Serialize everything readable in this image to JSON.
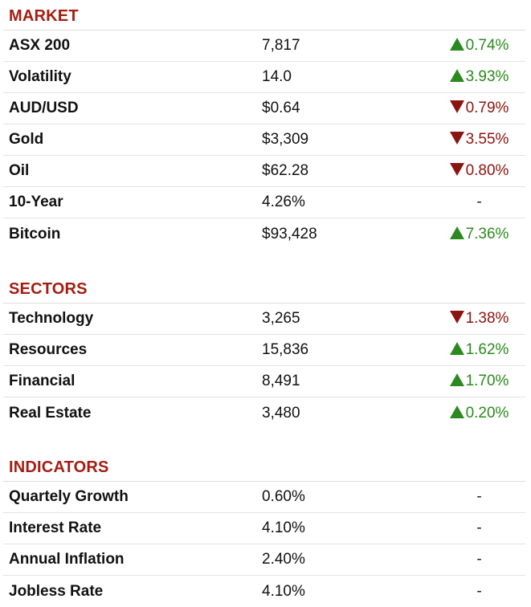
{
  "colors": {
    "section_title": "#a51d12",
    "up": "#2b8a1e",
    "down": "#8c1410",
    "divider": "#e3e3e3"
  },
  "market": {
    "title": "MARKET",
    "rows": [
      {
        "name": "ASX 200",
        "value": "7,817",
        "direction": "up",
        "change": "0.74%"
      },
      {
        "name": "Volatility",
        "value": "14.0",
        "direction": "up",
        "change": "3.93%"
      },
      {
        "name": "AUD/USD",
        "value": "$0.64",
        "direction": "down",
        "change": "0.79%"
      },
      {
        "name": "Gold",
        "value": "$3,309",
        "direction": "down",
        "change": "3.55%"
      },
      {
        "name": "Oil",
        "value": "$62.28",
        "direction": "down",
        "change": "0.80%"
      },
      {
        "name": "10-Year",
        "value": "4.26%",
        "direction": "flat",
        "change": "-"
      },
      {
        "name": "Bitcoin",
        "value": "$93,428",
        "direction": "up",
        "change": "7.36%"
      }
    ]
  },
  "sectors": {
    "title": "SECTORS",
    "rows": [
      {
        "name": "Technology",
        "value": "3,265",
        "direction": "down",
        "change": "1.38%"
      },
      {
        "name": "Resources",
        "value": "15,836",
        "direction": "up",
        "change": "1.62%"
      },
      {
        "name": "Financial",
        "value": "8,491",
        "direction": "up",
        "change": "1.70%"
      },
      {
        "name": "Real Estate",
        "value": "3,480",
        "direction": "up",
        "change": "0.20%"
      }
    ]
  },
  "indicators": {
    "title": "INDICATORS",
    "rows": [
      {
        "name": "Quartely Growth",
        "value": "0.60%",
        "direction": "flat",
        "change": "-"
      },
      {
        "name": "Interest Rate",
        "value": "4.10%",
        "direction": "flat",
        "change": "-"
      },
      {
        "name": "Annual Inflation",
        "value": "2.40%",
        "direction": "flat",
        "change": "-"
      },
      {
        "name": "Jobless Rate",
        "value": "4.10%",
        "direction": "flat",
        "change": "-"
      }
    ]
  }
}
